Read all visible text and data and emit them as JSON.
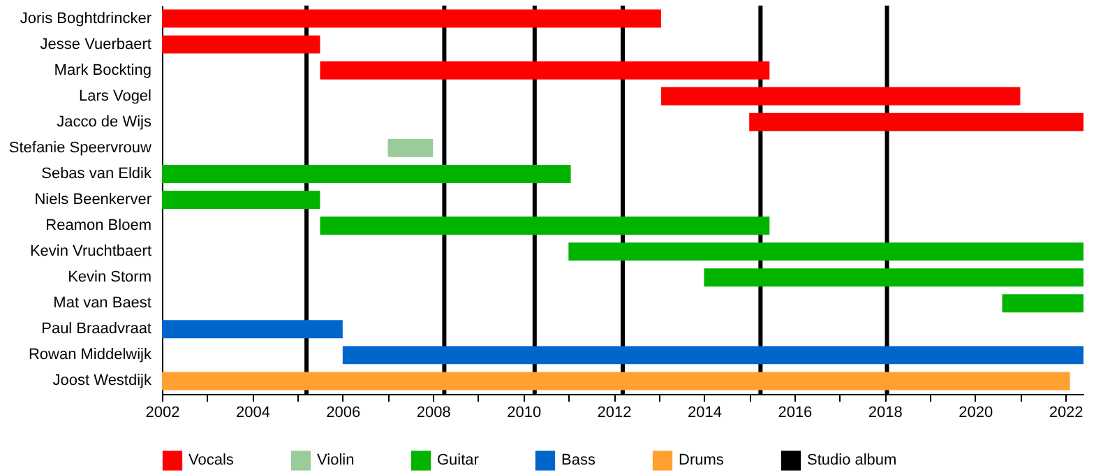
{
  "chart_data": {
    "type": "bar",
    "orientation": "horizontal",
    "categories": [
      "Joris Boghtdrincker",
      "Jesse Vuerbaert",
      "Mark Bockting",
      "Lars Vogel",
      "Jacco de Wijs",
      "Stefanie Speervrouw",
      "Sebas van Eldik",
      "Niels Beenkerver",
      "Reamon Bloem",
      "Kevin Vruchtbaert",
      "Kevin Storm",
      "Mat van Baest",
      "Paul Braadvraat",
      "Rowan Middelwijk",
      "Joost Westdijk"
    ],
    "series": [
      {
        "name": "Vocals",
        "color": "#ff0000",
        "base": [
          2002,
          2002,
          2005.5,
          2013.05,
          2015.0,
          null,
          null,
          null,
          null,
          null,
          null,
          null,
          null,
          null,
          null
        ],
        "values": [
          11.05,
          3.5,
          9.95,
          7.95,
          7.4,
          null,
          null,
          null,
          null,
          null,
          null,
          null,
          null,
          null,
          null
        ]
      },
      {
        "name": "Violin",
        "color": "#99cc99",
        "base": [
          null,
          null,
          null,
          null,
          null,
          2007,
          null,
          null,
          null,
          null,
          null,
          null,
          null,
          null,
          null
        ],
        "values": [
          null,
          null,
          null,
          null,
          null,
          1.0,
          null,
          null,
          null,
          null,
          null,
          null,
          null,
          null,
          null
        ]
      },
      {
        "name": "Guitar",
        "color": "#00b400",
        "base": [
          null,
          null,
          null,
          null,
          null,
          null,
          2002,
          2002,
          2005.5,
          2011.0,
          2014.0,
          2020.6,
          null,
          null,
          null
        ],
        "values": [
          null,
          null,
          null,
          null,
          null,
          null,
          9.05,
          3.5,
          9.95,
          11.4,
          8.4,
          1.8,
          null,
          null,
          null
        ]
      },
      {
        "name": "Bass",
        "color": "#0066cc",
        "base": [
          null,
          null,
          null,
          null,
          null,
          null,
          null,
          null,
          null,
          null,
          null,
          null,
          2002,
          2006,
          null
        ],
        "values": [
          null,
          null,
          null,
          null,
          null,
          null,
          null,
          null,
          null,
          null,
          null,
          null,
          4.0,
          16.4,
          null
        ]
      },
      {
        "name": "Drums",
        "color": "#ffa030",
        "base": [
          null,
          null,
          null,
          null,
          null,
          null,
          null,
          null,
          null,
          null,
          null,
          null,
          null,
          null,
          2002
        ],
        "values": [
          null,
          null,
          null,
          null,
          null,
          null,
          null,
          null,
          null,
          null,
          null,
          null,
          null,
          null,
          20.1
        ]
      }
    ],
    "ref_lines": [
      {
        "axis": "x",
        "value": 2005.2,
        "label": "Studio album",
        "color": "#000000"
      },
      {
        "axis": "x",
        "value": 2008.25,
        "color": "#000000"
      },
      {
        "axis": "x",
        "value": 2010.25,
        "color": "#000000"
      },
      {
        "axis": "x",
        "value": 2012.2,
        "color": "#000000"
      },
      {
        "axis": "x",
        "value": 2015.25,
        "color": "#000000"
      },
      {
        "axis": "x",
        "value": 2018.05,
        "color": "#000000"
      }
    ],
    "xlim": [
      2002,
      2022.4
    ],
    "xticks": [
      2002,
      {
        "value": 2003,
        "label": null
      },
      2004,
      {
        "value": 2005,
        "label": null
      },
      2006,
      {
        "value": 2007,
        "label": null
      },
      2008,
      {
        "value": 2009,
        "label": null
      },
      2010,
      {
        "value": 2011,
        "label": null
      },
      2012,
      {
        "value": 2013,
        "label": null
      },
      2014,
      {
        "value": 2015,
        "label": null
      },
      2016,
      {
        "value": 2017,
        "label": null
      },
      2018,
      {
        "value": 2019,
        "label": null
      },
      2020,
      {
        "value": 2021,
        "label": null
      },
      2022
    ],
    "grid": false,
    "legend": "bottom"
  }
}
